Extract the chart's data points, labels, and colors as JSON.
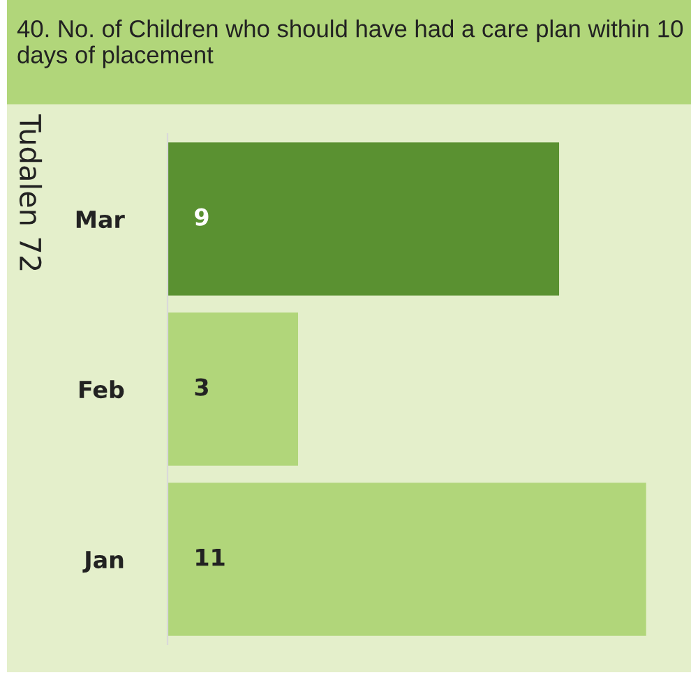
{
  "chart_data": {
    "type": "bar",
    "orientation": "horizontal",
    "title": "40. No. of Children who should have had a care plan within 10 days of placement",
    "categories": [
      "Mar",
      "Feb",
      "Jan"
    ],
    "values": [
      9,
      3,
      11
    ],
    "colors": [
      "#5a9131",
      "#b1d67a",
      "#b1d67a"
    ],
    "data_labels": true,
    "grid": false,
    "legend": false,
    "annotations": [
      "Tudalen 72"
    ]
  }
}
